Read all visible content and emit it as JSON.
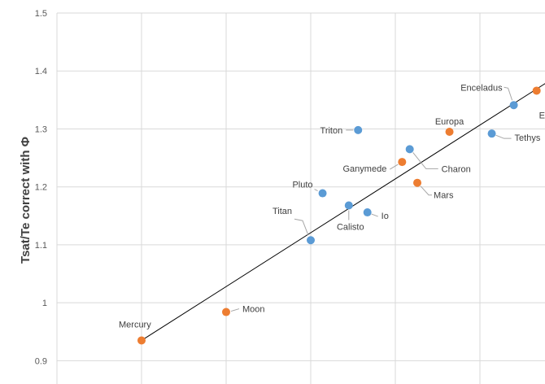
{
  "chart_data": {
    "type": "scatter",
    "ylabel": "Tsat/Te correct with Φ",
    "ylim": [
      0.85,
      1.5
    ],
    "y_ticks": [
      "0.9",
      "1",
      "1.1",
      "1.2",
      "1.3",
      "1.4",
      "1.5"
    ],
    "grid": true,
    "colors": {
      "blue": "#5b9bd5",
      "orange": "#ed7d31",
      "line": "#000000",
      "grid": "#d9d9d9"
    },
    "points": [
      {
        "label": "Mercury",
        "x": 1.0,
        "y": 0.935,
        "color": "orange"
      },
      {
        "label": "Moon",
        "x": 2.0,
        "y": 0.984,
        "color": "orange"
      },
      {
        "label": "Titan",
        "x": 3.0,
        "y": 1.108,
        "color": "blue"
      },
      {
        "label": "Pluto",
        "x": 3.14,
        "y": 1.189,
        "color": "blue"
      },
      {
        "label": "Calisto",
        "x": 3.45,
        "y": 1.168,
        "color": "blue"
      },
      {
        "label": "Io",
        "x": 3.67,
        "y": 1.156,
        "color": "blue"
      },
      {
        "label": "Triton",
        "x": 3.56,
        "y": 1.298,
        "color": "blue"
      },
      {
        "label": "Ganymede",
        "x": 4.08,
        "y": 1.243,
        "color": "orange"
      },
      {
        "label": "Charon",
        "x": 4.17,
        "y": 1.265,
        "color": "blue"
      },
      {
        "label": "Mars",
        "x": 4.26,
        "y": 1.207,
        "color": "orange"
      },
      {
        "label": "Europa",
        "x": 4.64,
        "y": 1.295,
        "color": "orange"
      },
      {
        "label": "Tethys",
        "x": 5.14,
        "y": 1.292,
        "color": "blue"
      },
      {
        "label": "Enceladus",
        "x": 5.4,
        "y": 1.341,
        "color": "blue"
      },
      {
        "label": "E",
        "x": 5.67,
        "y": 1.366,
        "color": "orange"
      }
    ],
    "trendline": {
      "from": [
        1.0,
        0.935
      ],
      "to": [
        5.8,
        1.381
      ]
    }
  }
}
